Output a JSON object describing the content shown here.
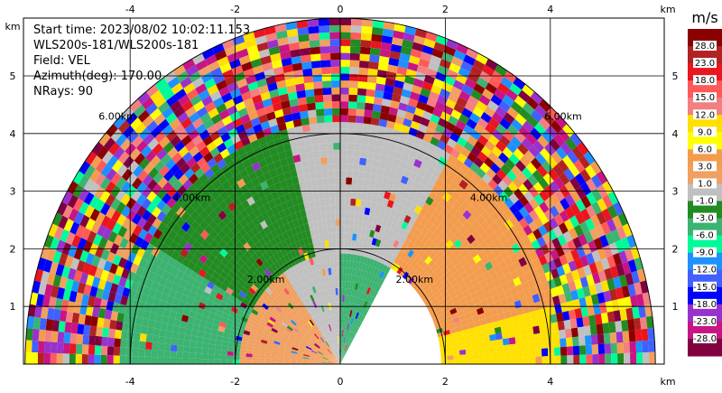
{
  "chart_data": {
    "type": "heatmap",
    "projection": "ppi-half-disk",
    "info_lines": [
      "Start time: 2023/08/02 10:02:11.153",
      "WLS200s-181/WLS200s-181",
      "Field: VEL",
      "Azimuth(deg): 170.00",
      "NRays: 90"
    ],
    "x_unit": "km",
    "y_unit": "km",
    "xlim": [
      -6.0,
      6.0
    ],
    "ylim": [
      0,
      6.0
    ],
    "x_ticks": [
      -4,
      -2,
      0,
      2,
      4
    ],
    "y_ticks": [
      1,
      2,
      3,
      4,
      5
    ],
    "range_rings_km": [
      2,
      4,
      6
    ],
    "ring_labels": [
      "2.00km",
      "4.00km",
      "6.00km"
    ],
    "max_range_km": 6.0,
    "grid": true,
    "colorbar": {
      "unit": "m/s",
      "levels": [
        "28.0",
        "23.0",
        "18.0",
        "15.0",
        "12.0",
        "9.0",
        "6.0",
        "3.0",
        "1.0",
        "-1.0",
        "-3.0",
        "-6.0",
        "-9.0",
        "-12.0",
        "-15.0",
        "-18.0",
        "-23.0",
        "-28.0"
      ],
      "colors": [
        "#8b0000",
        "#b22222",
        "#e9151f",
        "#ff5a5a",
        "#f38080",
        "#ffe000",
        "#ffff00",
        "#f39c4e",
        "#f0a060",
        "#c0c0c0",
        "#228b22",
        "#3cb371",
        "#00fa9a",
        "#1e90ff",
        "#4060ff",
        "#0000ff",
        "#9932cc",
        "#c71585",
        "#800040"
      ]
    },
    "field_regions": [
      {
        "name": "near-left",
        "az": [
          240,
          270
        ],
        "r_km": [
          0,
          1.9
        ],
        "value": 9.0
      },
      {
        "name": "near-left-mid",
        "az": [
          270,
          325
        ],
        "r_km": [
          0,
          1.9
        ],
        "value": 1.0
      },
      {
        "name": "near-center-left",
        "az": [
          325,
          360
        ],
        "r_km": [
          0,
          1.9
        ],
        "value": -1.0
      },
      {
        "name": "near-center-right",
        "az": [
          0,
          30
        ],
        "r_km": [
          0,
          1.9
        ],
        "value": -6.0
      },
      {
        "name": "mid-left",
        "az": [
          270,
          300
        ],
        "r_km": [
          1.9,
          4.2
        ],
        "value": -6.0
      },
      {
        "name": "mid-left-upper",
        "az": [
          300,
          345
        ],
        "r_km": [
          1.9,
          4.2
        ],
        "value": -3.0
      },
      {
        "name": "mid-center",
        "az": [
          345,
          30
        ],
        "r_km": [
          1.9,
          4.2
        ],
        "value": -1.0
      },
      {
        "name": "mid-right",
        "az": [
          30,
          75
        ],
        "r_km": [
          1.9,
          4.2
        ],
        "value": 3.0
      },
      {
        "name": "mid-right-low",
        "az": [
          75,
          90
        ],
        "r_km": [
          1.9,
          4.2
        ],
        "value": 9.0
      },
      {
        "name": "far-ring",
        "az": [
          270,
          90
        ],
        "r_km": [
          4.2,
          6.0
        ],
        "value": "noise"
      }
    ]
  }
}
